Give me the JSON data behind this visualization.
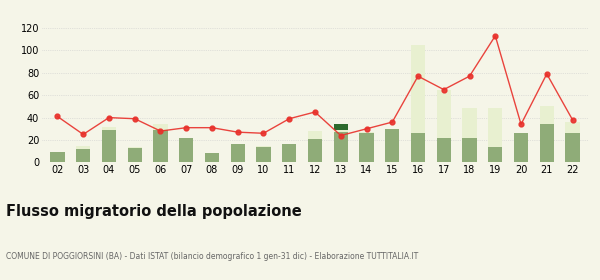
{
  "years": [
    "02",
    "03",
    "04",
    "05",
    "06",
    "07",
    "08",
    "09",
    "10",
    "11",
    "12",
    "13",
    "14",
    "15",
    "16",
    "17",
    "18",
    "19",
    "20",
    "21",
    "22"
  ],
  "iscritti_altri_comuni": [
    9,
    12,
    29,
    13,
    29,
    22,
    8,
    16,
    14,
    16,
    21,
    27,
    26,
    30,
    26,
    22,
    22,
    14,
    26,
    34,
    26
  ],
  "iscritti_estero": [
    0,
    3,
    3,
    1,
    5,
    0,
    0,
    0,
    1,
    0,
    7,
    2,
    1,
    0,
    79,
    43,
    27,
    35,
    0,
    16,
    10
  ],
  "iscritti_altri": [
    0,
    0,
    0,
    0,
    0,
    0,
    0,
    0,
    0,
    0,
    0,
    5,
    0,
    0,
    0,
    0,
    0,
    0,
    0,
    0,
    0
  ],
  "cancellati": [
    41,
    25,
    40,
    39,
    28,
    31,
    31,
    27,
    26,
    39,
    45,
    24,
    30,
    36,
    77,
    65,
    77,
    113,
    34,
    79,
    38
  ],
  "color_altri_comuni": "#8fac78",
  "color_estero": "#e8f0d0",
  "color_altri": "#2d6a2d",
  "color_cancellati": "#e8302a",
  "ylim": [
    0,
    120
  ],
  "yticks": [
    0,
    20,
    40,
    60,
    80,
    100,
    120
  ],
  "title": "Flusso migratorio della popolazione",
  "subtitle": "COMUNE DI POGGIORSINI (BA) - Dati ISTAT (bilancio demografico 1 gen-31 dic) - Elaborazione TUTTITALIA.IT",
  "background_color": "#f5f5e8"
}
